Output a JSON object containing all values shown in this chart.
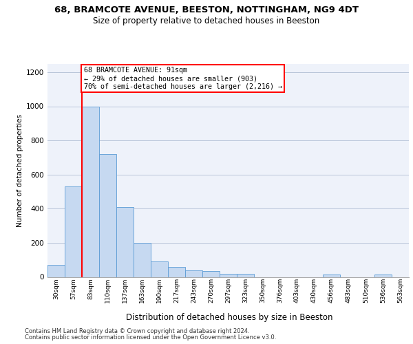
{
  "title1": "68, BRAMCOTE AVENUE, BEESTON, NOTTINGHAM, NG9 4DT",
  "title2": "Size of property relative to detached houses in Beeston",
  "xlabel": "Distribution of detached houses by size in Beeston",
  "ylabel": "Number of detached properties",
  "footnote1": "Contains HM Land Registry data © Crown copyright and database right 2024.",
  "footnote2": "Contains public sector information licensed under the Open Government Licence v3.0.",
  "bin_labels": [
    "30sqm",
    "57sqm",
    "83sqm",
    "110sqm",
    "137sqm",
    "163sqm",
    "190sqm",
    "217sqm",
    "243sqm",
    "270sqm",
    "297sqm",
    "323sqm",
    "350sqm",
    "376sqm",
    "403sqm",
    "430sqm",
    "456sqm",
    "483sqm",
    "510sqm",
    "536sqm",
    "563sqm"
  ],
  "bar_values": [
    70,
    530,
    1000,
    720,
    410,
    200,
    90,
    60,
    40,
    35,
    20,
    20,
    0,
    0,
    0,
    0,
    15,
    0,
    0,
    15,
    0
  ],
  "bar_color": "#c6d9f1",
  "bar_edge_color": "#5b9bd5",
  "grid_color": "#b8c4d8",
  "bg_color": "#eef2fa",
  "red_line_bin_index": 2,
  "annotation_lines": [
    "68 BRAMCOTE AVENUE: 91sqm",
    "← 29% of detached houses are smaller (903)",
    "70% of semi-detached houses are larger (2,216) →"
  ],
  "ylim": [
    0,
    1250
  ],
  "yticks": [
    0,
    200,
    400,
    600,
    800,
    1000,
    1200
  ]
}
